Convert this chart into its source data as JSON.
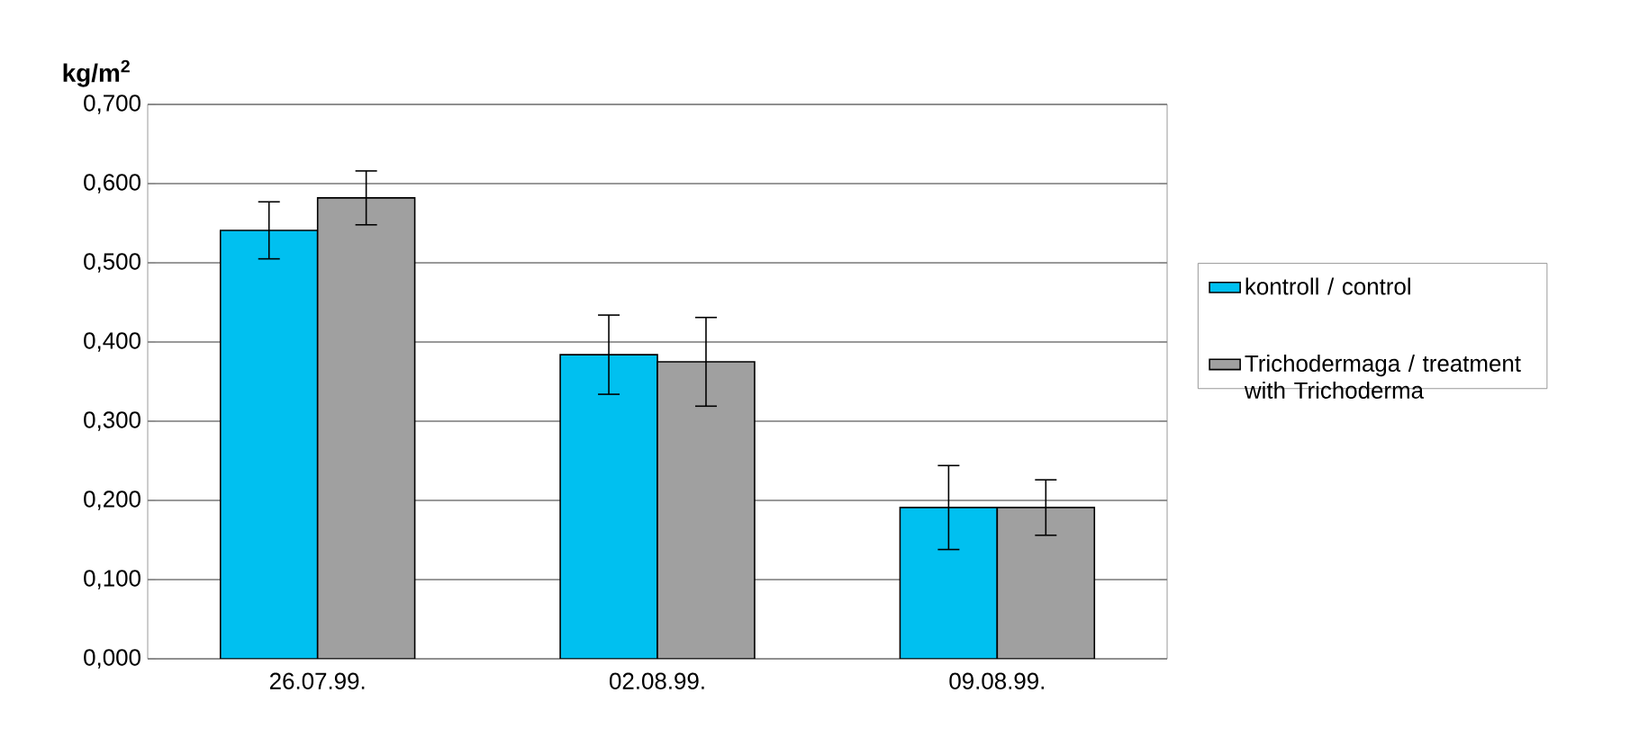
{
  "chart_data": {
    "type": "bar",
    "ylabel": "kg/m$^{2}$",
    "categories": [
      "26.07.99.",
      "02.08.99.",
      "09.08.99."
    ],
    "series": [
      {
        "name": "kontroll / control",
        "color": "#00c0f0",
        "values": [
          0.541,
          0.384,
          0.191
        ],
        "errors": [
          0.036,
          0.05,
          0.053
        ]
      },
      {
        "name": "Trichodermaga / treatment with Trichoderma",
        "color": "#a0a0a0",
        "values": [
          0.582,
          0.375,
          0.191
        ],
        "errors": [
          0.034,
          0.056,
          0.035
        ]
      }
    ],
    "ylim": [
      0,
      0.7
    ],
    "yticks": [
      {
        "value": 0,
        "label": "0,000"
      },
      {
        "value": 0.1,
        "label": "0,100"
      },
      {
        "value": 0.2,
        "label": "0,200"
      },
      {
        "value": 0.3,
        "label": "0,300"
      },
      {
        "value": 0.4,
        "label": "0,400"
      },
      {
        "value": 0.5,
        "label": "0,500"
      },
      {
        "value": 0.6,
        "label": "0,600"
      },
      {
        "value": 0.7,
        "label": "0,700"
      }
    ],
    "grid": "y",
    "legend": "right"
  }
}
